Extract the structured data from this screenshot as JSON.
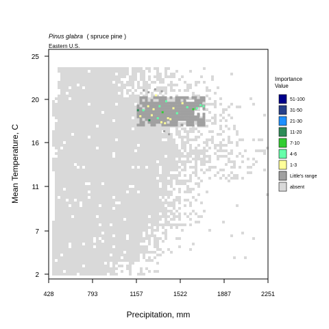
{
  "chart_data": {
    "type": "heatmap",
    "title": {
      "species": "Pinus glabra",
      "common": "( spruce pine )"
    },
    "subtitle": "Eastern U.S.",
    "xlabel": "Precipitation, mm",
    "ylabel": "Mean Temperature, C",
    "x_ticks": [
      "428",
      "793",
      "1157",
      "1522",
      "1887",
      "2251"
    ],
    "y_ticks": [
      "2",
      "7",
      "11",
      "16",
      "20",
      "25"
    ],
    "xlim": [
      428,
      2251
    ],
    "ylim": [
      2,
      25
    ],
    "legend": {
      "title": [
        "Importance",
        "Value"
      ],
      "position": "right",
      "entries": [
        {
          "label": "51-100",
          "color": "#00008b"
        },
        {
          "label": "31-50",
          "color": "#27408b"
        },
        {
          "label": "21-30",
          "color": "#1e90ff"
        },
        {
          "label": "11-20",
          "color": "#2e8b57"
        },
        {
          "label": "7-10",
          "color": "#32cd32"
        },
        {
          "label": "4-6",
          "color": "#66ffaa"
        },
        {
          "label": "1-3",
          "color": "#ffff99"
        },
        {
          "label": "Little's range",
          "color": "#a0a0a0"
        },
        {
          "label": "absent",
          "color": "#d9d9d9"
        }
      ]
    },
    "range_region": {
      "precip": [
        1160,
        1710
      ],
      "temp": [
        17.5,
        20.3
      ]
    },
    "importance_points": [
      {
        "precip": 1170,
        "temp": 18.9,
        "class": "11-20"
      },
      {
        "precip": 1190,
        "temp": 18.3,
        "class": "1-3"
      },
      {
        "precip": 1215,
        "temp": 18.9,
        "class": "4-6"
      },
      {
        "precip": 1255,
        "temp": 19.3,
        "class": "1-3"
      },
      {
        "precip": 1265,
        "temp": 17.9,
        "class": "11-20"
      },
      {
        "precip": 1285,
        "temp": 18.4,
        "class": "1-3"
      },
      {
        "precip": 1300,
        "temp": 19.0,
        "class": "1-3"
      },
      {
        "precip": 1320,
        "temp": 20.4,
        "class": "1-3"
      },
      {
        "precip": 1335,
        "temp": 18.1,
        "class": "4-6"
      },
      {
        "precip": 1350,
        "temp": 19.3,
        "class": "4-6"
      },
      {
        "precip": 1365,
        "temp": 17.7,
        "class": "1-3"
      },
      {
        "precip": 1375,
        "temp": 18.7,
        "class": "7-10"
      },
      {
        "precip": 1395,
        "temp": 17.6,
        "class": "1-3"
      },
      {
        "precip": 1405,
        "temp": 19.8,
        "class": "4-6"
      },
      {
        "precip": 1420,
        "temp": 18.1,
        "class": "1-3"
      },
      {
        "precip": 1440,
        "temp": 18.0,
        "class": "1-3"
      },
      {
        "precip": 1465,
        "temp": 19.1,
        "class": "1-3"
      },
      {
        "precip": 1495,
        "temp": 18.6,
        "class": "4-6"
      },
      {
        "precip": 1540,
        "temp": 19.6,
        "class": "1-3"
      },
      {
        "precip": 1580,
        "temp": 19.2,
        "class": "4-6"
      },
      {
        "precip": 1630,
        "temp": 19.0,
        "class": "7-10"
      },
      {
        "precip": 1660,
        "temp": 19.1,
        "class": "4-6"
      },
      {
        "precip": 1690,
        "temp": 19.4,
        "class": "4-6"
      },
      {
        "precip": 1715,
        "temp": 19.3,
        "class": "4-6"
      }
    ]
  }
}
